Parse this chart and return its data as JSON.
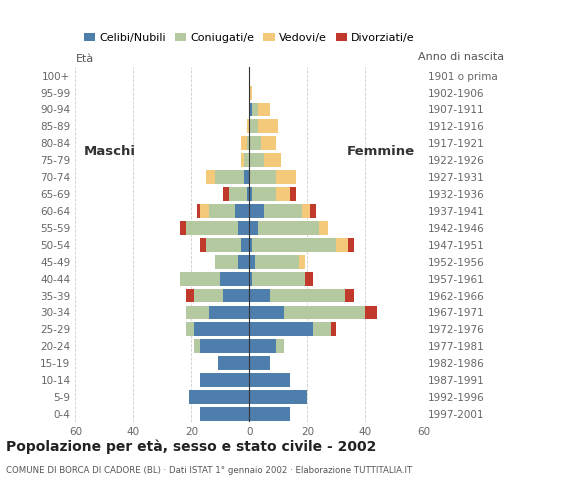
{
  "age_groups": [
    "0-4",
    "5-9",
    "10-14",
    "15-19",
    "20-24",
    "25-29",
    "30-34",
    "35-39",
    "40-44",
    "45-49",
    "50-54",
    "55-59",
    "60-64",
    "65-69",
    "70-74",
    "75-79",
    "80-84",
    "85-89",
    "90-94",
    "95-99",
    "100+"
  ],
  "birth_years": [
    "1997-2001",
    "1992-1996",
    "1987-1991",
    "1982-1986",
    "1977-1981",
    "1972-1976",
    "1967-1971",
    "1962-1966",
    "1957-1961",
    "1952-1956",
    "1947-1951",
    "1942-1946",
    "1937-1941",
    "1932-1936",
    "1927-1931",
    "1922-1926",
    "1917-1921",
    "1912-1916",
    "1907-1911",
    "1902-1906",
    "1901 o prima"
  ],
  "males": {
    "celibi": [
      17,
      21,
      17,
      11,
      17,
      19,
      14,
      9,
      10,
      4,
      3,
      4,
      5,
      1,
      2,
      0,
      0,
      0,
      0,
      0,
      0
    ],
    "coniugati": [
      0,
      0,
      0,
      0,
      2,
      3,
      8,
      10,
      14,
      8,
      12,
      18,
      9,
      6,
      10,
      2,
      1,
      0,
      0,
      0,
      0
    ],
    "vedovi": [
      0,
      0,
      0,
      0,
      0,
      0,
      0,
      0,
      0,
      0,
      0,
      0,
      3,
      0,
      3,
      1,
      2,
      1,
      0,
      0,
      0
    ],
    "divorziati": [
      0,
      0,
      0,
      0,
      0,
      0,
      0,
      3,
      0,
      0,
      2,
      2,
      1,
      2,
      0,
      0,
      0,
      0,
      0,
      0,
      0
    ]
  },
  "females": {
    "nubili": [
      14,
      20,
      14,
      7,
      9,
      22,
      12,
      7,
      1,
      2,
      1,
      3,
      5,
      1,
      0,
      0,
      0,
      0,
      1,
      0,
      0
    ],
    "coniugate": [
      0,
      0,
      0,
      0,
      3,
      6,
      28,
      26,
      18,
      15,
      29,
      21,
      13,
      8,
      9,
      5,
      4,
      3,
      2,
      0,
      0
    ],
    "vedove": [
      0,
      0,
      0,
      0,
      0,
      0,
      0,
      0,
      0,
      2,
      4,
      3,
      3,
      5,
      7,
      6,
      5,
      7,
      4,
      1,
      0
    ],
    "divorziate": [
      0,
      0,
      0,
      0,
      0,
      2,
      4,
      3,
      3,
      0,
      2,
      0,
      2,
      2,
      0,
      0,
      0,
      0,
      0,
      0,
      0
    ]
  },
  "color_celibi": "#4e7eac",
  "color_coniugati": "#b5c9a0",
  "color_vedovi": "#f5c97a",
  "color_divorziati": "#c0392b",
  "title": "Popolazione per età, sesso e stato civile - 2002",
  "subtitle": "COMUNE DI BORCA DI CADORE (BL) · Dati ISTAT 1° gennaio 2002 · Elaborazione TUTTITALIA.IT",
  "label_eta": "Età",
  "label_anno": "Anno di nascita",
  "label_maschi": "Maschi",
  "label_femmine": "Femmine",
  "legend_labels": [
    "Celibi/Nubili",
    "Coniugati/e",
    "Vedovi/e",
    "Divorziati/e"
  ],
  "xlim": 60,
  "background_color": "#ffffff"
}
